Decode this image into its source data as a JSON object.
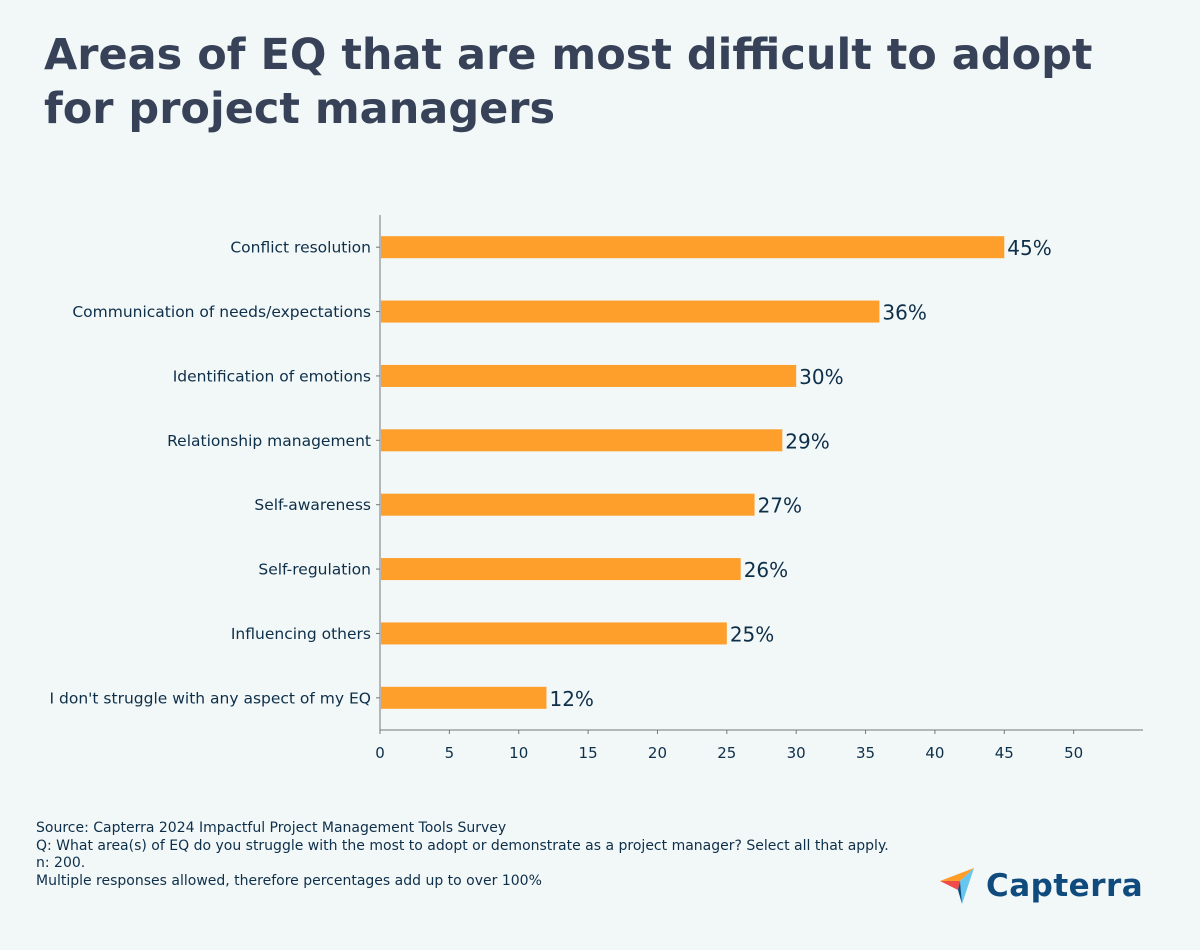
{
  "title": "Areas of EQ that are most difficult to adopt for project managers",
  "chart_data": {
    "type": "bar",
    "orientation": "horizontal",
    "title": "Areas of EQ that are most difficult to adopt for project managers",
    "categories": [
      "Conflict resolution",
      "Communication of needs/expectations",
      "Identification of emotions",
      "Relationship management",
      "Self-awareness",
      "Self-regulation",
      "Influencing others",
      "I don't struggle with any aspect of my EQ"
    ],
    "values": [
      45,
      36,
      30,
      29,
      27,
      26,
      25,
      12
    ],
    "value_labels": [
      "45%",
      "36%",
      "30%",
      "29%",
      "27%",
      "26%",
      "25%",
      "12%"
    ],
    "xticks": [
      0,
      5,
      10,
      15,
      20,
      25,
      30,
      35,
      40,
      45,
      50
    ],
    "xlim": [
      0,
      55
    ],
    "xlabel": "",
    "ylabel": "",
    "grid": false,
    "bar_color": "#ff9f2b"
  },
  "footer": {
    "lines": [
      "Source: Capterra 2024 Impactful Project Management Tools Survey",
      "Q: What area(s) of EQ do you struggle with the most to adopt or demonstrate as a project manager? Select all that apply.",
      "n: 200.",
      "Multiple responses allowed, therefore percentages add up to over 100%"
    ]
  },
  "logo": {
    "text": "Capterra",
    "colors": [
      "#ff9d28",
      "#ef4b4b",
      "#68c5ed",
      "#044d80"
    ]
  }
}
